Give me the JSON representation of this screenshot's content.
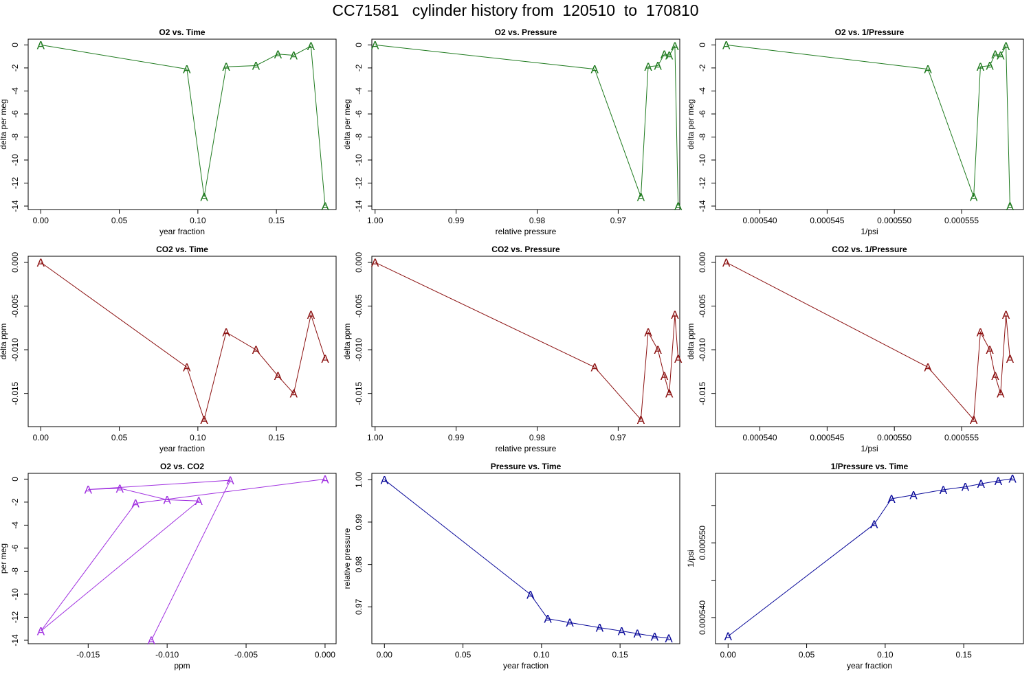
{
  "page_title": "CC71581   cylinder history from  120510  to  170810",
  "marker_glyph": "A",
  "colors": {
    "o2": "#1e7a1e",
    "co2": "#8b1010",
    "o2_vs_co2": "#a030e0",
    "pressure": "#0a0a9a"
  },
  "chart_data": [
    {
      "type": "line",
      "title": "O2 vs. Time",
      "xlabel": "year fraction",
      "ylabel": "delta per meg",
      "color_key": "o2",
      "xlim": [
        -0.008,
        0.188
      ],
      "ylim": [
        -14.3,
        0.5
      ],
      "x_ticks": [
        {
          "v": 0.0,
          "label": "0.00"
        },
        {
          "v": 0.05,
          "label": "0.05"
        },
        {
          "v": 0.1,
          "label": "0.10"
        },
        {
          "v": 0.15,
          "label": "0.15"
        }
      ],
      "y_ticks": [
        {
          "v": 0,
          "label": "0"
        },
        {
          "v": -2,
          "label": "-2"
        },
        {
          "v": -4,
          "label": "-4"
        },
        {
          "v": -6,
          "label": "-6"
        },
        {
          "v": -8,
          "label": "-8"
        },
        {
          "v": -10,
          "label": "-10"
        },
        {
          "v": -12,
          "label": "-12"
        },
        {
          "v": -14,
          "label": "-14"
        }
      ],
      "x": [
        0.0,
        0.093,
        0.104,
        0.118,
        0.137,
        0.151,
        0.161,
        0.172,
        0.181
      ],
      "y": [
        0.0,
        -2.1,
        -13.2,
        -1.9,
        -1.8,
        -0.8,
        -0.9,
        -0.1,
        -14.0
      ]
    },
    {
      "type": "line",
      "title": "O2 vs. Pressure",
      "xlabel": "relative pressure",
      "ylabel": "delta per meg",
      "color_key": "o2",
      "xlim": [
        1.0004,
        0.9624
      ],
      "ylim": [
        -14.3,
        0.5
      ],
      "x_ticks": [
        {
          "v": 1.0,
          "label": "1.00"
        },
        {
          "v": 0.99,
          "label": "0.99"
        },
        {
          "v": 0.98,
          "label": "0.98"
        },
        {
          "v": 0.97,
          "label": "0.97"
        }
      ],
      "y_ticks": [
        {
          "v": 0,
          "label": "0"
        },
        {
          "v": -2,
          "label": "-2"
        },
        {
          "v": -4,
          "label": "-4"
        },
        {
          "v": -6,
          "label": "-6"
        },
        {
          "v": -8,
          "label": "-8"
        },
        {
          "v": -10,
          "label": "-10"
        },
        {
          "v": -12,
          "label": "-12"
        },
        {
          "v": -14,
          "label": "-14"
        }
      ],
      "x": [
        1.0,
        0.9729,
        0.9672,
        0.9663,
        0.9651,
        0.9643,
        0.9637,
        0.963,
        0.9626
      ],
      "y": [
        0.0,
        -2.1,
        -13.2,
        -1.9,
        -1.8,
        -0.8,
        -0.9,
        -0.1,
        -14.0
      ]
    },
    {
      "type": "line",
      "title": "O2 vs. 1/Pressure",
      "xlabel": "1/psi",
      "ylabel": "delta per meg",
      "color_key": "o2",
      "xlim": [
        0.0005367,
        0.0005596
      ],
      "ylim": [
        -14.3,
        0.5
      ],
      "x_ticks": [
        {
          "v": 0.00054,
          "label": "0.000540"
        },
        {
          "v": 0.000545,
          "label": "0.000545"
        },
        {
          "v": 0.00055,
          "label": "0.000550"
        },
        {
          "v": 0.000555,
          "label": "0.000555"
        }
      ],
      "y_ticks": [
        {
          "v": 0,
          "label": "0"
        },
        {
          "v": -2,
          "label": "-2"
        },
        {
          "v": -4,
          "label": "-4"
        },
        {
          "v": -6,
          "label": "-6"
        },
        {
          "v": -8,
          "label": "-8"
        },
        {
          "v": -10,
          "label": "-10"
        },
        {
          "v": -12,
          "label": "-12"
        },
        {
          "v": -14,
          "label": "-14"
        }
      ],
      "x": [
        0.0005375,
        0.0005525,
        0.0005559,
        0.0005564,
        0.0005571,
        0.0005575,
        0.0005579,
        0.0005583,
        0.0005586
      ],
      "y": [
        0.0,
        -2.1,
        -13.2,
        -1.9,
        -1.8,
        -0.8,
        -0.9,
        -0.1,
        -14.0
      ]
    },
    {
      "type": "line",
      "title": "CO2 vs. Time",
      "xlabel": "year fraction",
      "ylabel": "delta ppm",
      "color_key": "co2",
      "xlim": [
        -0.008,
        0.188
      ],
      "ylim": [
        -0.0188,
        0.0007
      ],
      "x_ticks": [
        {
          "v": 0.0,
          "label": "0.00"
        },
        {
          "v": 0.05,
          "label": "0.05"
        },
        {
          "v": 0.1,
          "label": "0.10"
        },
        {
          "v": 0.15,
          "label": "0.15"
        }
      ],
      "y_ticks": [
        {
          "v": 0.0,
          "label": "0.000"
        },
        {
          "v": -0.005,
          "label": "-0.005"
        },
        {
          "v": -0.01,
          "label": "-0.010"
        },
        {
          "v": -0.015,
          "label": "-0.015"
        }
      ],
      "x": [
        0.0,
        0.093,
        0.104,
        0.118,
        0.137,
        0.151,
        0.161,
        0.172,
        0.181
      ],
      "y": [
        0.0,
        -0.012,
        -0.018,
        -0.008,
        -0.01,
        -0.013,
        -0.015,
        -0.006,
        -0.011
      ]
    },
    {
      "type": "line",
      "title": "CO2 vs. Pressure",
      "xlabel": "relative pressure",
      "ylabel": "delta ppm",
      "color_key": "co2",
      "xlim": [
        1.0004,
        0.9624
      ],
      "ylim": [
        -0.0188,
        0.0007
      ],
      "x_ticks": [
        {
          "v": 1.0,
          "label": "1.00"
        },
        {
          "v": 0.99,
          "label": "0.99"
        },
        {
          "v": 0.98,
          "label": "0.98"
        },
        {
          "v": 0.97,
          "label": "0.97"
        }
      ],
      "y_ticks": [
        {
          "v": 0.0,
          "label": "0.000"
        },
        {
          "v": -0.005,
          "label": "-0.005"
        },
        {
          "v": -0.01,
          "label": "-0.010"
        },
        {
          "v": -0.015,
          "label": "-0.015"
        }
      ],
      "x": [
        1.0,
        0.9729,
        0.9672,
        0.9663,
        0.9651,
        0.9643,
        0.9637,
        0.963,
        0.9626
      ],
      "y": [
        0.0,
        -0.012,
        -0.018,
        -0.008,
        -0.01,
        -0.013,
        -0.015,
        -0.006,
        -0.011
      ]
    },
    {
      "type": "line",
      "title": "CO2 vs. 1/Pressure",
      "xlabel": "1/psi",
      "ylabel": "delta ppm",
      "color_key": "co2",
      "xlim": [
        0.0005367,
        0.0005596
      ],
      "ylim": [
        -0.0188,
        0.0007
      ],
      "x_ticks": [
        {
          "v": 0.00054,
          "label": "0.000540"
        },
        {
          "v": 0.000545,
          "label": "0.000545"
        },
        {
          "v": 0.00055,
          "label": "0.000550"
        },
        {
          "v": 0.000555,
          "label": "0.000555"
        }
      ],
      "y_ticks": [
        {
          "v": 0.0,
          "label": "0.000"
        },
        {
          "v": -0.005,
          "label": "-0.005"
        },
        {
          "v": -0.01,
          "label": "-0.010"
        },
        {
          "v": -0.015,
          "label": "-0.015"
        }
      ],
      "x": [
        0.0005375,
        0.0005525,
        0.0005559,
        0.0005564,
        0.0005571,
        0.0005575,
        0.0005579,
        0.0005583,
        0.0005586
      ],
      "y": [
        0.0,
        -0.012,
        -0.018,
        -0.008,
        -0.01,
        -0.013,
        -0.015,
        -0.006,
        -0.011
      ]
    },
    {
      "type": "line",
      "title": "O2 vs. CO2",
      "xlabel": "ppm",
      "ylabel": "per meg",
      "color_key": "o2_vs_co2",
      "xlim": [
        -0.0188,
        0.0007
      ],
      "ylim": [
        -14.3,
        0.5
      ],
      "x_ticks": [
        {
          "v": -0.015,
          "label": "-0.015"
        },
        {
          "v": -0.01,
          "label": "-0.010"
        },
        {
          "v": -0.005,
          "label": "-0.005"
        },
        {
          "v": 0.0,
          "label": "0.000"
        }
      ],
      "y_ticks": [
        {
          "v": 0,
          "label": "0"
        },
        {
          "v": -2,
          "label": "-2"
        },
        {
          "v": -4,
          "label": "-4"
        },
        {
          "v": -6,
          "label": "-6"
        },
        {
          "v": -8,
          "label": "-8"
        },
        {
          "v": -10,
          "label": "-10"
        },
        {
          "v": -12,
          "label": "-12"
        },
        {
          "v": -14,
          "label": "-14"
        }
      ],
      "x": [
        0.0,
        -0.012,
        -0.018,
        -0.008,
        -0.01,
        -0.013,
        -0.015,
        -0.006,
        -0.011
      ],
      "y": [
        0.0,
        -2.1,
        -13.2,
        -1.9,
        -1.8,
        -0.8,
        -0.9,
        -0.1,
        -14.0
      ]
    },
    {
      "type": "line",
      "title": "Pressure vs. Time",
      "xlabel": "year fraction",
      "ylabel": "relative pressure",
      "color_key": "pressure",
      "xlim": [
        -0.008,
        0.188
      ],
      "ylim": [
        0.9613,
        1.0015
      ],
      "x_ticks": [
        {
          "v": 0.0,
          "label": "0.00"
        },
        {
          "v": 0.05,
          "label": "0.05"
        },
        {
          "v": 0.1,
          "label": "0.10"
        },
        {
          "v": 0.15,
          "label": "0.15"
        }
      ],
      "y_ticks": [
        {
          "v": 0.97,
          "label": "0.97"
        },
        {
          "v": 0.98,
          "label": "0.98"
        },
        {
          "v": 0.99,
          "label": "0.99"
        },
        {
          "v": 1.0,
          "label": "1.00"
        }
      ],
      "x": [
        0.0,
        0.093,
        0.104,
        0.118,
        0.137,
        0.151,
        0.161,
        0.172,
        0.181
      ],
      "y": [
        1.0,
        0.9729,
        0.9672,
        0.9663,
        0.9651,
        0.9643,
        0.9637,
        0.963,
        0.9626
      ]
    },
    {
      "type": "line",
      "title": "1/Pressure vs. Time",
      "xlabel": "year fraction",
      "ylabel": "1/psi",
      "color_key": "pressure",
      "xlim": [
        -0.008,
        0.188
      ],
      "ylim": [
        0.0005365,
        0.0005593
      ],
      "x_ticks": [
        {
          "v": 0.0,
          "label": "0.00"
        },
        {
          "v": 0.05,
          "label": "0.05"
        },
        {
          "v": 0.1,
          "label": "0.10"
        },
        {
          "v": 0.15,
          "label": "0.15"
        }
      ],
      "y_ticks": [
        {
          "v": 0.00054,
          "label": "0.000540"
        },
        {
          "v": 0.000545,
          "label": ""
        },
        {
          "v": 0.00055,
          "label": "0.000550"
        },
        {
          "v": 0.000555,
          "label": ""
        }
      ],
      "x": [
        0.0,
        0.093,
        0.104,
        0.118,
        0.137,
        0.151,
        0.161,
        0.172,
        0.181
      ],
      "y": [
        0.0005375,
        0.0005525,
        0.0005559,
        0.0005564,
        0.0005571,
        0.0005575,
        0.0005579,
        0.0005583,
        0.0005586
      ]
    }
  ]
}
